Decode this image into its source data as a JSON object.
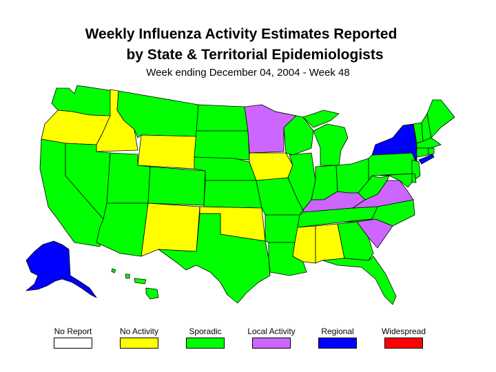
{
  "title_line1": "Weekly Influenza Activity Estimates Reported",
  "title_line2": "by State & Territorial Epidemiologists",
  "subtitle": "Week ending December 04, 2004 - Week 48",
  "legend": [
    {
      "label": "No Report",
      "color": "#ffffff"
    },
    {
      "label": "No Activity",
      "color": "#ffff00"
    },
    {
      "label": "Sporadic",
      "color": "#00ff00"
    },
    {
      "label": "Local Activity",
      "color": "#cc66ff"
    },
    {
      "label": "Regional",
      "color": "#0000ff"
    },
    {
      "label": "Widespread",
      "color": "#ff0000"
    }
  ],
  "states": {
    "washington": "Sporadic",
    "oregon": "No Activity",
    "idaho": "No Activity",
    "montana": "Sporadic",
    "wyoming": "No Activity",
    "california": "Sporadic",
    "nevada": "Sporadic",
    "utah": "Sporadic",
    "arizona": "Sporadic",
    "colorado": "Sporadic",
    "new_mexico": "No Activity",
    "north_dakota": "Sporadic",
    "south_dakota": "Sporadic",
    "nebraska": "Sporadic",
    "kansas": "Sporadic",
    "oklahoma": "No Activity",
    "texas": "Sporadic",
    "minnesota": "Local Activity",
    "iowa": "No Activity",
    "missouri": "Sporadic",
    "arkansas": "Sporadic",
    "louisiana": "Sporadic",
    "wisconsin": "Sporadic",
    "illinois": "Sporadic",
    "michigan": "Sporadic",
    "indiana": "Sporadic",
    "ohio": "Sporadic",
    "kentucky": "Local Activity",
    "tennessee": "Sporadic",
    "mississippi": "No Activity",
    "alabama": "No Activity",
    "georgia": "Sporadic",
    "florida": "Sporadic",
    "south_carolina": "Local Activity",
    "north_carolina": "Sporadic",
    "virginia": "Local Activity",
    "west_virginia": "Sporadic",
    "pennsylvania": "Sporadic",
    "new_york": "Regional",
    "new_jersey": "Sporadic",
    "maryland": "Sporadic",
    "delaware": "Sporadic",
    "connecticut": "Sporadic",
    "rhode_island": "Sporadic",
    "massachusetts": "Sporadic",
    "vermont": "Sporadic",
    "new_hampshire": "Sporadic",
    "maine": "Sporadic",
    "alaska": "Regional",
    "hawaii": "Sporadic",
    "new_york_city": "Regional"
  }
}
